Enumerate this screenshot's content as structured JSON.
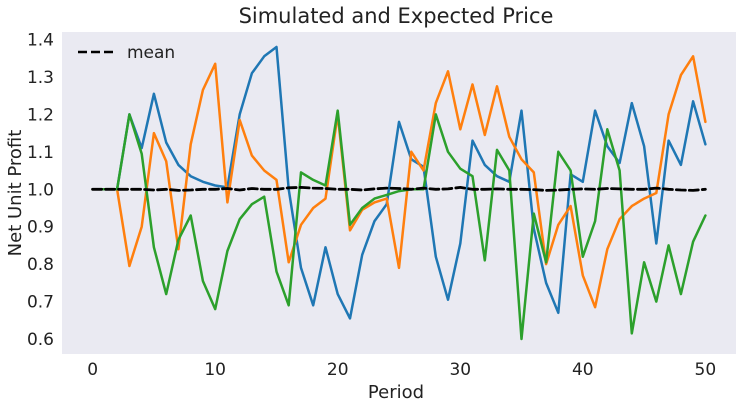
{
  "chart_data": {
    "type": "line",
    "title": "Simulated and Expected Price",
    "xlabel": "Period",
    "ylabel": "Net Unit Profit",
    "xlim": [
      -2.5,
      52.5
    ],
    "ylim": [
      0.56,
      1.42
    ],
    "xticks": [
      0,
      10,
      20,
      30,
      40,
      50
    ],
    "yticks": [
      0.6,
      0.7,
      0.8,
      0.9,
      1.0,
      1.1,
      1.2,
      1.3,
      1.4
    ],
    "xtick_labels": [
      "0",
      "10",
      "20",
      "30",
      "40",
      "50"
    ],
    "ytick_labels": [
      "0.6",
      "0.7",
      "0.8",
      "0.9",
      "1.0",
      "1.1",
      "1.2",
      "1.3",
      "1.4"
    ],
    "grid": false,
    "legend": {
      "entries": [
        "mean"
      ],
      "placement": "top-left"
    },
    "background_color": "#eaeaf2",
    "x": [
      0,
      1,
      2,
      3,
      4,
      5,
      6,
      7,
      8,
      9,
      10,
      11,
      12,
      13,
      14,
      15,
      16,
      17,
      18,
      19,
      20,
      21,
      22,
      23,
      24,
      25,
      26,
      27,
      28,
      29,
      30,
      31,
      32,
      33,
      34,
      35,
      36,
      37,
      38,
      39,
      40,
      41,
      42,
      43,
      44,
      45,
      46,
      47,
      48,
      49,
      50
    ],
    "series": [
      {
        "color": "#1f77b4",
        "dashed": false,
        "values": [
          1.0,
          1.0,
          1.0,
          1.2,
          1.11,
          1.255,
          1.125,
          1.065,
          1.035,
          1.02,
          1.01,
          1.005,
          1.2,
          1.31,
          1.355,
          1.38,
          1.0,
          0.79,
          0.69,
          0.845,
          0.72,
          0.655,
          0.825,
          0.915,
          0.96,
          1.18,
          1.08,
          1.06,
          0.82,
          0.705,
          0.855,
          1.13,
          1.065,
          1.035,
          1.02,
          1.21,
          0.895,
          0.75,
          0.67,
          1.04,
          1.02,
          1.21,
          1.115,
          1.07,
          1.23,
          1.115,
          0.855,
          1.13,
          1.065,
          1.235,
          1.12
        ]
      },
      {
        "color": "#ff7f0e",
        "dashed": false,
        "values": [
          1.0,
          1.0,
          1.0,
          0.795,
          0.9,
          1.15,
          1.075,
          0.84,
          1.12,
          1.265,
          1.335,
          0.965,
          1.185,
          1.09,
          1.05,
          1.025,
          0.805,
          0.905,
          0.95,
          0.975,
          1.2,
          0.89,
          0.945,
          0.965,
          0.975,
          0.79,
          1.1,
          1.05,
          1.23,
          1.315,
          1.16,
          1.28,
          1.145,
          1.275,
          1.14,
          1.08,
          1.045,
          0.8,
          0.905,
          0.955,
          0.77,
          0.685,
          0.84,
          0.92,
          0.955,
          0.975,
          0.99,
          1.2,
          1.305,
          1.355,
          1.18
        ]
      },
      {
        "color": "#2ca02c",
        "dashed": false,
        "values": [
          1.0,
          1.0,
          1.0,
          1.2,
          1.095,
          0.845,
          0.72,
          0.865,
          0.93,
          0.755,
          0.68,
          0.835,
          0.92,
          0.96,
          0.98,
          0.78,
          0.69,
          1.045,
          1.025,
          1.01,
          1.21,
          0.905,
          0.95,
          0.975,
          0.985,
          0.995,
          1.0,
          1.0,
          1.2,
          1.1,
          1.055,
          1.035,
          0.81,
          1.105,
          1.05,
          0.6,
          0.935,
          0.805,
          1.1,
          1.05,
          0.82,
          0.915,
          1.16,
          1.05,
          0.615,
          0.805,
          0.7,
          0.85,
          0.72,
          0.86,
          0.93
        ]
      },
      {
        "name": "mean",
        "color": "#000000",
        "dashed": true,
        "values": [
          1.0,
          1.0,
          1.0,
          1.0,
          1.0,
          0.998,
          1.0,
          0.997,
          0.998,
          1.0,
          1.0,
          1.002,
          0.998,
          1.002,
          1.0,
          1.0,
          1.004,
          1.005,
          1.003,
          1.002,
          1.0,
          1.0,
          0.998,
          1.001,
          1.003,
          1.002,
          1.0,
          1.003,
          1.0,
          1.001,
          1.005,
          1.0,
          1.0,
          1.001,
          1.0,
          1.0,
          0.999,
          0.997,
          0.998,
          1.0,
          1.001,
          1.0,
          1.002,
          1.001,
          1.0,
          1.0,
          1.003,
          1.0,
          0.998,
          0.997,
          1.0
        ]
      }
    ]
  }
}
